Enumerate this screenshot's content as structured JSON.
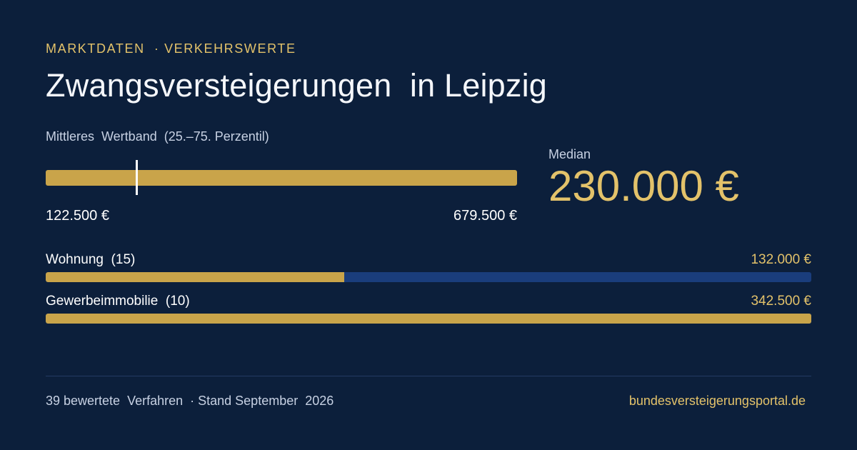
{
  "header": {
    "kicker": "MARKTDATEN  · VERKEHRSWERTE",
    "title": "Zwangsversteigerungen  in Leipzig"
  },
  "band": {
    "label": "Mittleres  Wertband  (25.–75. Perzentil)",
    "min_label": "122.500 €",
    "max_label": "679.500 €",
    "min_value": 122500,
    "max_value": 679500,
    "median_value": 230000
  },
  "median": {
    "label": "Median",
    "value": "230.000 €"
  },
  "categories": [
    {
      "name": "Wohnung  (15)",
      "value": "132.000 €",
      "fill_fraction": 0.39
    },
    {
      "name": "Gewerbeimmobilie  (10)",
      "value": "342.500 €",
      "fill_fraction": 1.0
    }
  ],
  "footer": {
    "left": "39 bewertete  Verfahren  · Stand September  2026",
    "right": "bundesversteigerungsportal.de"
  },
  "colors": {
    "background": "#0c1f3b",
    "gold": "#c9a44a",
    "gold_text": "#e3c26a",
    "track": "#1a3d7c"
  }
}
